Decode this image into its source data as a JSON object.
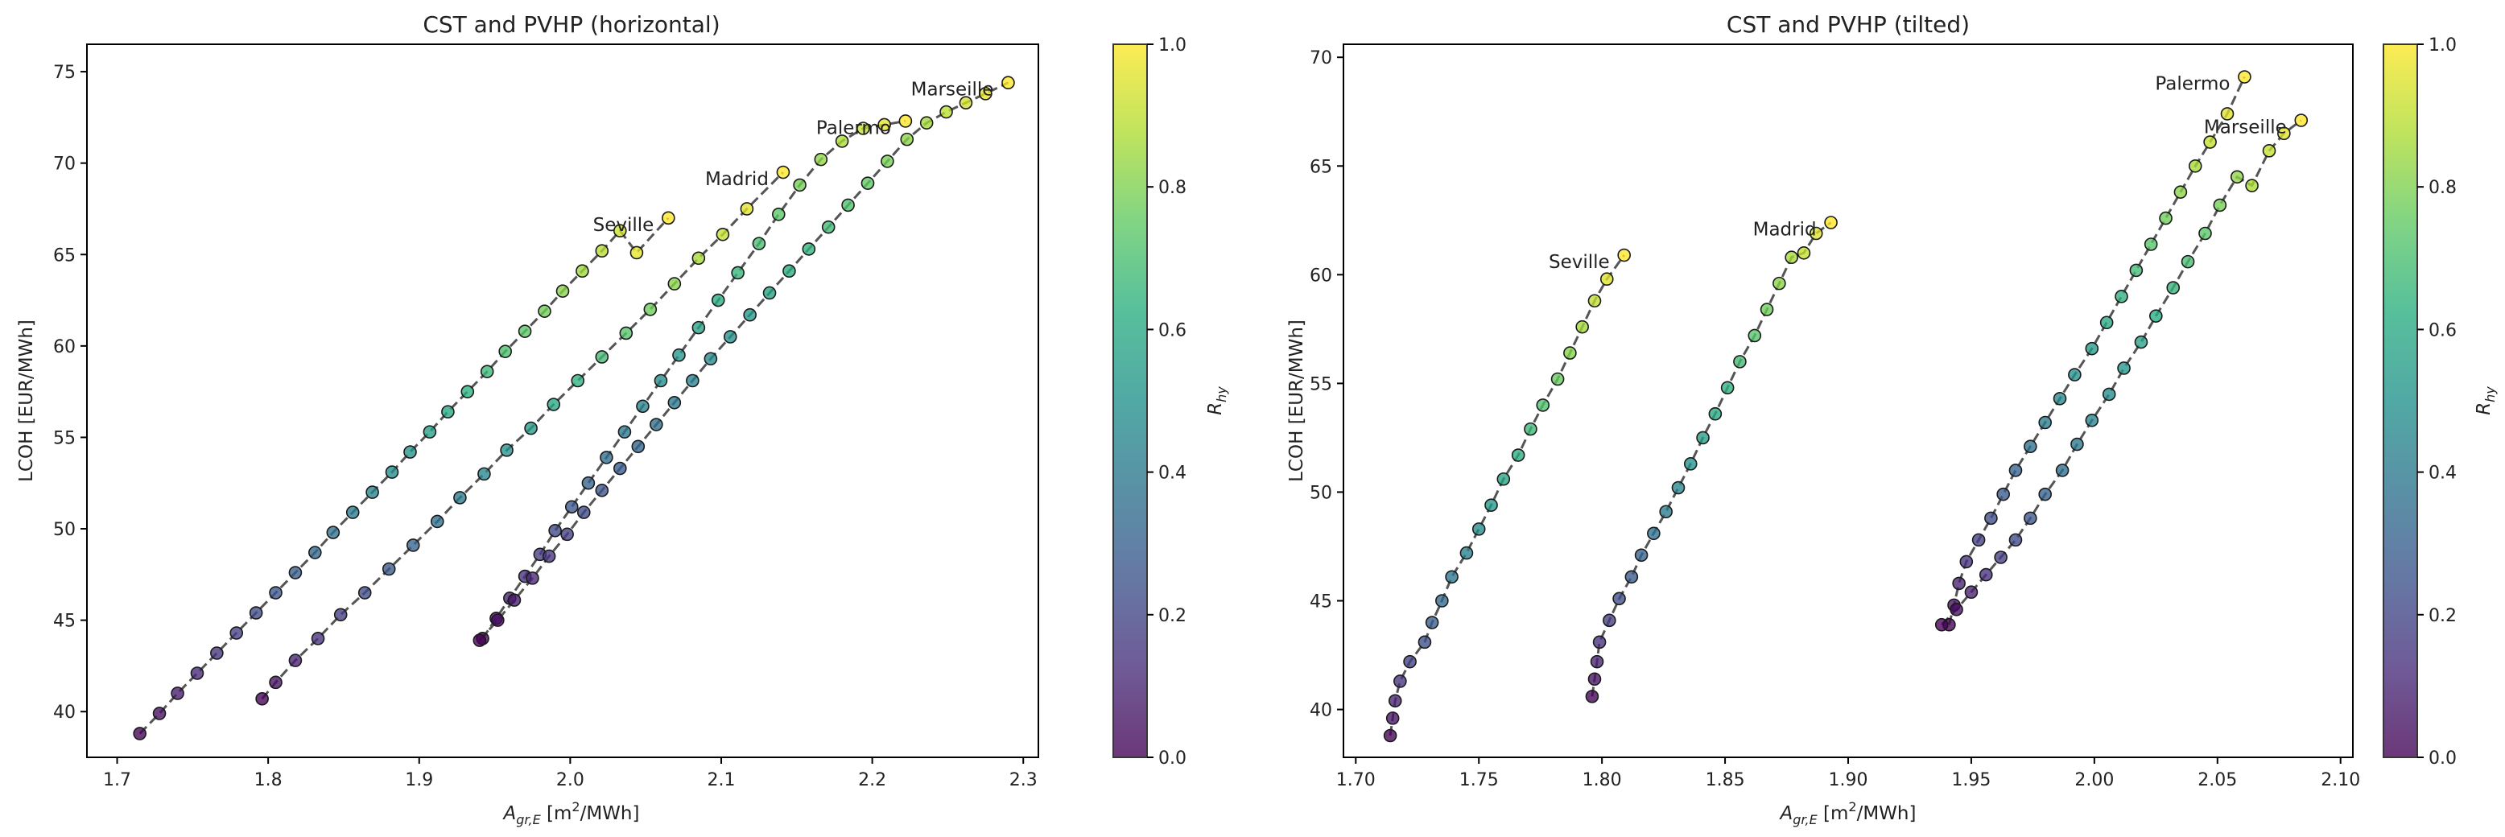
{
  "chart_data": [
    {
      "type": "scatter",
      "title": "CST and PVHP (horizontal)",
      "xlabel_main": "A",
      "xlabel_sub": "gr,E",
      "xlabel_unit_pre": " [m",
      "xlabel_unit_sup": "2",
      "xlabel_unit_post": "/MWh]",
      "ylabel": "LCOH [EUR/MWh]",
      "xlim": [
        1.68,
        2.31
      ],
      "ylim": [
        37.5,
        76.5
      ],
      "xticks": [
        1.7,
        1.8,
        1.9,
        2.0,
        2.1,
        2.2,
        2.3
      ],
      "xtick_labels": [
        "1.7",
        "1.8",
        "1.9",
        "2.0",
        "2.1",
        "2.2",
        "2.3"
      ],
      "yticks": [
        40,
        45,
        50,
        55,
        60,
        65,
        70,
        75
      ],
      "ytick_labels": [
        "40",
        "45",
        "50",
        "55",
        "60",
        "65",
        "70",
        "75"
      ],
      "colorbar": {
        "label_main": "R",
        "label_sub": "hy",
        "range": [
          0.0,
          1.0
        ],
        "ticks": [
          0.0,
          0.2,
          0.4,
          0.6,
          0.8,
          1.0
        ],
        "tick_labels": [
          "0.0",
          "0.2",
          "0.4",
          "0.6",
          "0.8",
          "1.0"
        ],
        "colormap": "viridis"
      },
      "series": [
        {
          "name": "Seville",
          "label_anchor": "end",
          "x": [
            1.715,
            1.728,
            1.74,
            1.753,
            1.766,
            1.779,
            1.792,
            1.805,
            1.818,
            1.831,
            1.843,
            1.856,
            1.869,
            1.882,
            1.894,
            1.907,
            1.919,
            1.932,
            1.945,
            1.957,
            1.97,
            1.983,
            1.995,
            2.008,
            2.021,
            2.033,
            2.044,
            2.065
          ],
          "y": [
            38.8,
            39.9,
            41.0,
            42.1,
            43.2,
            44.3,
            45.4,
            46.5,
            47.6,
            48.7,
            49.8,
            50.9,
            52.0,
            53.1,
            54.2,
            55.3,
            56.4,
            57.5,
            58.6,
            59.7,
            60.8,
            61.9,
            63.0,
            64.1,
            65.2,
            66.3,
            65.1,
            67.0
          ],
          "r": [
            0.0,
            0.037,
            0.074,
            0.111,
            0.148,
            0.185,
            0.222,
            0.259,
            0.296,
            0.333,
            0.37,
            0.407,
            0.444,
            0.481,
            0.519,
            0.556,
            0.593,
            0.63,
            0.667,
            0.704,
            0.741,
            0.778,
            0.815,
            0.852,
            0.889,
            0.926,
            0.963,
            1.0
          ]
        },
        {
          "name": "Madrid",
          "label_anchor": "end",
          "x": [
            1.796,
            1.805,
            1.818,
            1.833,
            1.848,
            1.864,
            1.88,
            1.896,
            1.912,
            1.927,
            1.943,
            1.958,
            1.974,
            1.989,
            2.005,
            2.021,
            2.037,
            2.053,
            2.069,
            2.085,
            2.101,
            2.117,
            2.141
          ],
          "y": [
            40.7,
            41.6,
            42.8,
            44.0,
            45.3,
            46.5,
            47.8,
            49.1,
            50.4,
            51.7,
            53.0,
            54.3,
            55.5,
            56.8,
            58.1,
            59.4,
            60.7,
            62.0,
            63.4,
            64.8,
            66.1,
            67.5,
            69.5
          ],
          "r": [
            0.0,
            0.045,
            0.091,
            0.136,
            0.182,
            0.227,
            0.273,
            0.318,
            0.364,
            0.409,
            0.455,
            0.5,
            0.545,
            0.591,
            0.636,
            0.682,
            0.727,
            0.773,
            0.818,
            0.864,
            0.909,
            0.955,
            1.0
          ]
        },
        {
          "name": "Palermo",
          "label_anchor": "end",
          "x": [
            1.942,
            1.951,
            1.96,
            1.97,
            1.98,
            1.99,
            2.001,
            2.012,
            2.024,
            2.036,
            2.048,
            2.06,
            2.072,
            2.085,
            2.098,
            2.111,
            2.125,
            2.138,
            2.152,
            2.166,
            2.18,
            2.194,
            2.208,
            2.222
          ],
          "y": [
            44.0,
            45.1,
            46.2,
            47.4,
            48.6,
            49.9,
            51.2,
            52.5,
            53.9,
            55.3,
            56.7,
            58.1,
            59.5,
            61.0,
            62.5,
            64.0,
            65.6,
            67.2,
            68.8,
            70.2,
            71.2,
            71.9,
            72.1,
            72.3
          ],
          "r": [
            0.0,
            0.043,
            0.087,
            0.13,
            0.174,
            0.217,
            0.261,
            0.304,
            0.348,
            0.391,
            0.435,
            0.478,
            0.522,
            0.565,
            0.609,
            0.652,
            0.696,
            0.739,
            0.783,
            0.826,
            0.87,
            0.913,
            0.957,
            1.0
          ]
        },
        {
          "name": "Marseille",
          "label_anchor": "end",
          "x": [
            1.94,
            1.952,
            1.963,
            1.975,
            1.986,
            1.998,
            2.009,
            2.021,
            2.033,
            2.045,
            2.057,
            2.069,
            2.081,
            2.093,
            2.106,
            2.119,
            2.132,
            2.145,
            2.158,
            2.171,
            2.184,
            2.197,
            2.21,
            2.223,
            2.236,
            2.249,
            2.262,
            2.275,
            2.29
          ],
          "y": [
            43.9,
            45.0,
            46.1,
            47.3,
            48.5,
            49.7,
            50.9,
            52.1,
            53.3,
            54.5,
            55.7,
            56.9,
            58.1,
            59.3,
            60.5,
            61.7,
            62.9,
            64.1,
            65.3,
            66.5,
            67.7,
            68.9,
            70.1,
            71.3,
            72.2,
            72.8,
            73.3,
            73.8,
            74.4
          ],
          "r": [
            0.0,
            0.036,
            0.071,
            0.107,
            0.143,
            0.179,
            0.214,
            0.25,
            0.286,
            0.321,
            0.357,
            0.393,
            0.429,
            0.464,
            0.5,
            0.536,
            0.571,
            0.607,
            0.643,
            0.679,
            0.714,
            0.75,
            0.786,
            0.821,
            0.857,
            0.893,
            0.929,
            0.964,
            1.0
          ]
        }
      ]
    },
    {
      "type": "scatter",
      "title": "CST and PVHP (tilted)",
      "xlabel_main": "A",
      "xlabel_sub": "gr,E",
      "xlabel_unit_pre": " [m",
      "xlabel_unit_sup": "2",
      "xlabel_unit_post": "/MWh]",
      "ylabel": "LCOH [EUR/MWh]",
      "xlim": [
        1.695,
        2.105
      ],
      "ylim": [
        37.8,
        70.6
      ],
      "xticks": [
        1.7,
        1.75,
        1.8,
        1.85,
        1.9,
        1.95,
        2.0,
        2.05,
        2.1
      ],
      "xtick_labels": [
        "1.70",
        "1.75",
        "1.80",
        "1.85",
        "1.90",
        "1.95",
        "2.00",
        "2.05",
        "2.10"
      ],
      "yticks": [
        40,
        45,
        50,
        55,
        60,
        65,
        70
      ],
      "ytick_labels": [
        "40",
        "45",
        "50",
        "55",
        "60",
        "65",
        "70"
      ],
      "colorbar": {
        "label_main": "R",
        "label_sub": "hy",
        "range": [
          0.0,
          1.0
        ],
        "ticks": [
          0.0,
          0.2,
          0.4,
          0.6,
          0.8,
          1.0
        ],
        "tick_labels": [
          "0.0",
          "0.2",
          "0.4",
          "0.6",
          "0.8",
          "1.0"
        ],
        "colormap": "viridis"
      },
      "series": [
        {
          "name": "Seville",
          "label_anchor": "end",
          "x": [
            1.714,
            1.715,
            1.716,
            1.718,
            1.722,
            1.728,
            1.731,
            1.735,
            1.739,
            1.745,
            1.75,
            1.755,
            1.76,
            1.766,
            1.771,
            1.776,
            1.782,
            1.787,
            1.792,
            1.797,
            1.802,
            1.809
          ],
          "y": [
            38.8,
            39.6,
            40.4,
            41.3,
            42.2,
            43.1,
            44.0,
            45.0,
            46.1,
            47.2,
            48.3,
            49.4,
            50.6,
            51.7,
            52.9,
            54.0,
            55.2,
            56.4,
            57.6,
            58.8,
            59.8,
            60.9
          ],
          "r": [
            0.0,
            0.048,
            0.095,
            0.143,
            0.19,
            0.238,
            0.286,
            0.333,
            0.381,
            0.429,
            0.476,
            0.524,
            0.571,
            0.619,
            0.667,
            0.714,
            0.762,
            0.81,
            0.857,
            0.905,
            0.952,
            1.0
          ]
        },
        {
          "name": "Madrid",
          "label_anchor": "end",
          "x": [
            1.796,
            1.797,
            1.798,
            1.799,
            1.803,
            1.807,
            1.812,
            1.816,
            1.821,
            1.826,
            1.831,
            1.836,
            1.841,
            1.846,
            1.851,
            1.856,
            1.862,
            1.867,
            1.872,
            1.877,
            1.882,
            1.887,
            1.893
          ],
          "y": [
            40.6,
            41.4,
            42.2,
            43.1,
            44.1,
            45.1,
            46.1,
            47.1,
            48.1,
            49.1,
            50.2,
            51.3,
            52.5,
            53.6,
            54.8,
            56.0,
            57.2,
            58.4,
            59.6,
            60.8,
            61.0,
            61.9,
            62.4
          ],
          "r": [
            0.0,
            0.045,
            0.091,
            0.136,
            0.182,
            0.227,
            0.273,
            0.318,
            0.364,
            0.409,
            0.455,
            0.5,
            0.545,
            0.591,
            0.636,
            0.682,
            0.727,
            0.773,
            0.818,
            0.864,
            0.909,
            0.955,
            1.0
          ]
        },
        {
          "name": "Palermo",
          "label_anchor": "end",
          "x": [
            1.941,
            1.943,
            1.945,
            1.948,
            1.953,
            1.958,
            1.963,
            1.968,
            1.974,
            1.98,
            1.986,
            1.992,
            1.999,
            2.005,
            2.011,
            2.017,
            2.023,
            2.029,
            2.035,
            2.041,
            2.047,
            2.054,
            2.061
          ],
          "y": [
            43.9,
            44.8,
            45.8,
            46.8,
            47.8,
            48.8,
            49.9,
            51.0,
            52.1,
            53.2,
            54.3,
            55.4,
            56.6,
            57.8,
            59.0,
            60.2,
            61.4,
            62.6,
            63.8,
            65.0,
            66.1,
            67.4,
            69.1
          ],
          "r": [
            0.0,
            0.045,
            0.091,
            0.136,
            0.182,
            0.227,
            0.273,
            0.318,
            0.364,
            0.409,
            0.455,
            0.5,
            0.545,
            0.591,
            0.636,
            0.682,
            0.727,
            0.773,
            0.818,
            0.864,
            0.909,
            0.955,
            1.0
          ]
        },
        {
          "name": "Marseille",
          "label_anchor": "end",
          "x": [
            1.938,
            1.944,
            1.95,
            1.956,
            1.962,
            1.968,
            1.974,
            1.98,
            1.987,
            1.993,
            1.999,
            2.006,
            2.012,
            2.019,
            2.025,
            2.032,
            2.038,
            2.045,
            2.051,
            2.058,
            2.064,
            2.071,
            2.077,
            2.084
          ],
          "y": [
            43.9,
            44.6,
            45.4,
            46.2,
            47.0,
            47.8,
            48.8,
            49.9,
            51.0,
            52.2,
            53.3,
            54.5,
            55.7,
            56.9,
            58.1,
            59.4,
            60.6,
            61.9,
            63.2,
            64.5,
            64.1,
            65.7,
            66.5,
            67.1
          ],
          "r": [
            0.0,
            0.043,
            0.087,
            0.13,
            0.174,
            0.217,
            0.261,
            0.304,
            0.348,
            0.391,
            0.435,
            0.478,
            0.522,
            0.565,
            0.609,
            0.652,
            0.696,
            0.739,
            0.783,
            0.826,
            0.87,
            0.913,
            0.957,
            1.0
          ]
        }
      ]
    }
  ]
}
